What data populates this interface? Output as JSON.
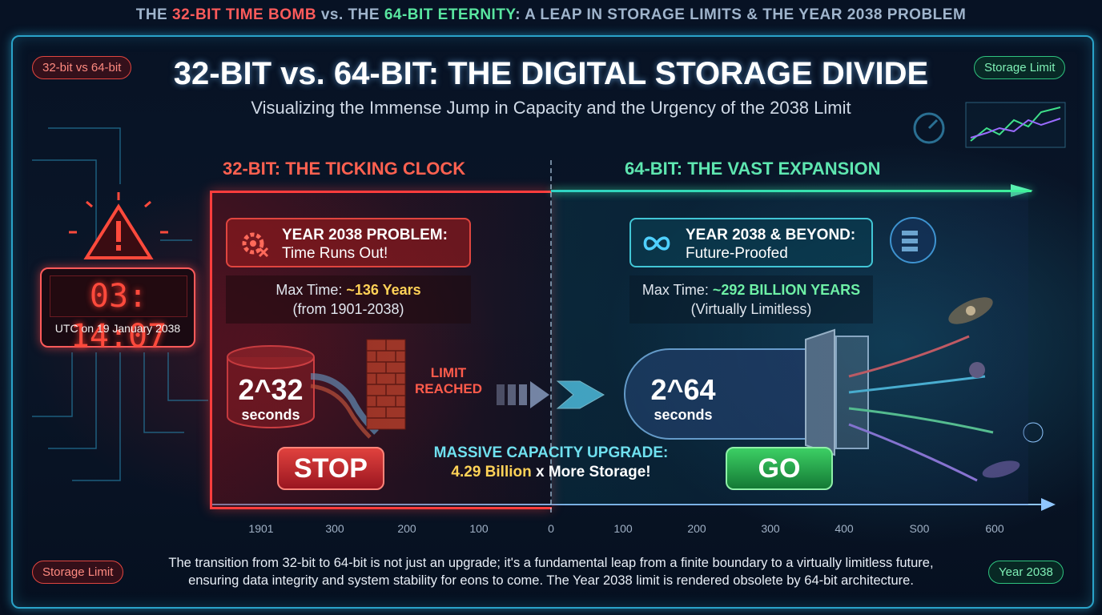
{
  "banner": {
    "part1": "THE ",
    "part2": "32-BIT TIME BOMB",
    "part3": " vs. THE ",
    "part4": "64-BIT ETERNITY",
    "part5": ": A LEAP IN STORAGE LIMITS & THE YEAR 2038 PROBLEM"
  },
  "tags": {
    "top_left": "32-bit vs 64-bit",
    "top_right": "Storage Limit",
    "bottom_left": "Storage Limit",
    "bottom_right": "Year 2038"
  },
  "title": "32-BIT vs. 64-BIT: THE DIGITAL STORAGE DIVIDE",
  "subtitle": "Visualizing the Immense Jump in Capacity and the Urgency of the 2038 Limit",
  "clock": {
    "time": "03: 14:07",
    "caption": "UTC on 19 January 2038"
  },
  "left": {
    "section_title": "32-BIT: THE TICKING CLOCK",
    "card_line1": "YEAR 2038 PROBLEM:",
    "card_line2": "Time Runs Out!",
    "max_prefix": "Max Time: ",
    "max_value": "~136 Years",
    "max_range": "(from 1901-2038)",
    "exp": "2^32",
    "exp_unit": "seconds",
    "limit_line1": "LIMIT",
    "limit_line2": "REACHED",
    "button": "STOP"
  },
  "right": {
    "section_title": "64-BIT: THE VAST EXPANSION",
    "card_line1": "YEAR 2038 & BEYOND:",
    "card_line2": "Future-Proofed",
    "max_prefix": "Max Time: ",
    "max_value": "~292 BILLION YEARS",
    "max_range": "(Virtually Limitless)",
    "exp": "2^64",
    "exp_unit": "seconds",
    "button": "GO"
  },
  "upgrade": {
    "line1": "MASSIVE CAPACITY UPGRADE:",
    "line2_value": "4.29 Billion",
    "line2_rest": " x More Storage!"
  },
  "timeline": [
    "1901",
    "300",
    "200",
    "100",
    "0",
    "100",
    "200",
    "300",
    "400",
    "S00",
    "600"
  ],
  "footer_line1": "The transition from 32-bit to 64-bit is not just an upgrade; it's a fundamental leap from a finite boundary to a virtually limitless future,",
  "footer_line2": "ensuring data integrity and system stability for eons to come. The Year 2038 limit is rendered obsolete by 64-bit architecture.",
  "colors": {
    "red_accent": "#ff3d3d",
    "green_accent": "#3ff09a",
    "cyan_frame": "#2aa3c9",
    "highlight": "#ffd257"
  }
}
